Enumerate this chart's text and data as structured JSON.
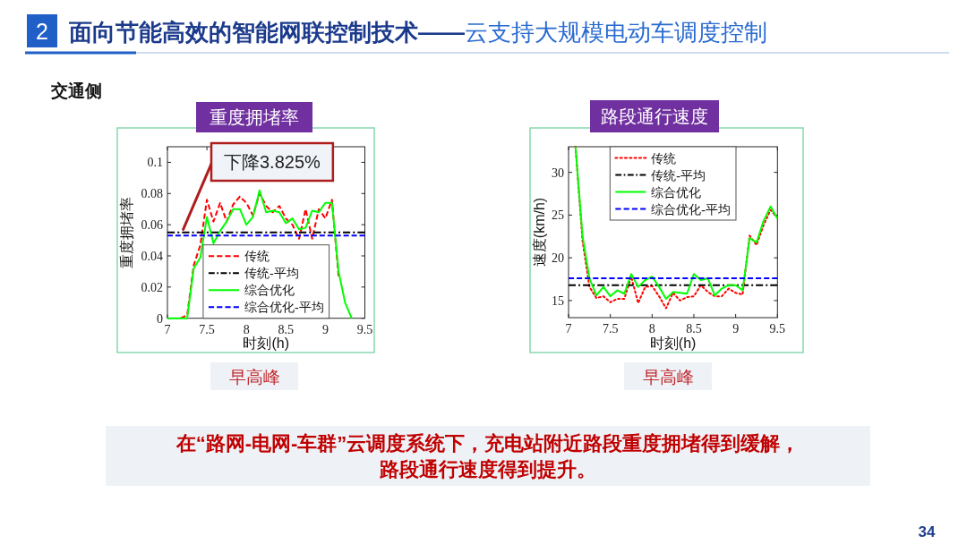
{
  "chart_data": [
    {
      "type": "other",
      "title": "面向节能高效的智能网联控制技术——",
      "subtitle": "云支持大规模电动车调度控制",
      "annotations": [
        "2",
        "交通侧"
      ]
    },
    {
      "type": "line",
      "title": "重度拥堵率",
      "xlabel": "时刻(h)",
      "ylabel": "重度拥堵率",
      "x": [
        7,
        7.083,
        7.167,
        7.25,
        7.333,
        7.417,
        7.5,
        7.583,
        7.667,
        7.75,
        7.833,
        7.917,
        8,
        8.083,
        8.167,
        8.25,
        8.333,
        8.417,
        8.5,
        8.583,
        8.667,
        8.75,
        8.833,
        8.917,
        9,
        9.083,
        9.167,
        9.25,
        9.333,
        9.417,
        9.5
      ],
      "series": [
        {
          "name": "传统",
          "color": "#ff0000",
          "line_style": "dashed",
          "values": [
            null,
            null,
            0,
            0.002,
            0.034,
            0.047,
            0.076,
            0.062,
            0.074,
            0.062,
            0.073,
            0.078,
            0.074,
            0.066,
            0.08,
            0.072,
            0.068,
            0.072,
            0.064,
            0.06,
            0.051,
            0.07,
            0.051,
            0.07,
            0.064,
            0.076,
            0.027,
            null,
            null,
            null,
            null
          ]
        },
        {
          "name": "传统-平均",
          "color": "#000000",
          "line_style": "dashdot",
          "values": [
            0.055,
            0.055,
            0.055,
            0.055,
            0.055,
            0.055,
            0.055,
            0.055,
            0.055,
            0.055,
            0.055,
            0.055,
            0.055,
            0.055,
            0.055,
            0.055,
            0.055,
            0.055,
            0.055,
            0.055,
            0.055,
            0.055,
            0.055,
            0.055,
            0.055,
            0.055,
            0.055,
            0.055,
            0.055,
            0.055,
            0.055
          ]
        },
        {
          "name": "综合优化",
          "color": "#00ff00",
          "line_style": "solid",
          "values": [
            0,
            0,
            0,
            0,
            0.032,
            0.039,
            0.065,
            0.048,
            0.056,
            0.062,
            0.07,
            0.07,
            0.06,
            0.065,
            0.082,
            0.068,
            0.069,
            0.068,
            0.061,
            0.064,
            0.057,
            0.058,
            0.069,
            0.068,
            0.074,
            0.074,
            0.03,
            0.01,
            0,
            null,
            null
          ]
        },
        {
          "name": "综合优化-平均",
          "color": "#0000ff",
          "line_style": "dashed",
          "values": [
            0.053,
            0.053,
            0.053,
            0.053,
            0.053,
            0.053,
            0.053,
            0.053,
            0.053,
            0.053,
            0.053,
            0.053,
            0.053,
            0.053,
            0.053,
            0.053,
            0.053,
            0.053,
            0.053,
            0.053,
            0.053,
            0.053,
            0.053,
            0.053,
            0.053,
            0.053,
            0.053,
            0.053,
            0.053,
            0.053,
            0.053
          ]
        }
      ],
      "xlim": [
        7,
        9.5
      ],
      "xticks": [
        7,
        7.5,
        8,
        8.5,
        9,
        9.5
      ],
      "ylim": [
        0,
        0.11
      ],
      "yticks": [
        0,
        0.02,
        0.04,
        0.06,
        0.08,
        0.1
      ],
      "legend": "bottom",
      "annotations": [
        {
          "text": "下降3.825%",
          "x": 7.2,
          "y": 0.057
        },
        "早高峰"
      ]
    },
    {
      "type": "line",
      "title": "路段通行速度",
      "xlabel": "时刻(h)",
      "ylabel": "速度(km/h)",
      "x": [
        7,
        7.083,
        7.167,
        7.25,
        7.333,
        7.417,
        7.5,
        7.583,
        7.667,
        7.75,
        7.833,
        7.917,
        8,
        8.083,
        8.167,
        8.25,
        8.333,
        8.417,
        8.5,
        8.583,
        8.667,
        8.75,
        8.833,
        8.917,
        9,
        9.083,
        9.167,
        9.25,
        9.333,
        9.417,
        9.5
      ],
      "series": [
        {
          "name": "传统",
          "color": "#ff0000",
          "line_style": "dotted",
          "values": [
            null,
            33,
            22.0,
            16.6,
            15.3,
            15.5,
            14.8,
            15.2,
            15.2,
            17.8,
            14.7,
            16.6,
            16.7,
            15.5,
            14.1,
            15.9,
            15.0,
            15.4,
            15.5,
            16.8,
            16.0,
            15.5,
            15.5,
            16.4,
            15.9,
            15.7,
            22.6,
            21.5,
            23.8,
            25.6,
            24.7
          ]
        },
        {
          "name": "传统-平均",
          "color": "#000000",
          "line_style": "dashdot",
          "values": [
            16.8,
            16.8,
            16.8,
            16.8,
            16.8,
            16.8,
            16.8,
            16.8,
            16.8,
            16.8,
            16.8,
            16.8,
            16.8,
            16.8,
            16.8,
            16.8,
            16.8,
            16.8,
            16.8,
            16.8,
            16.8,
            16.8,
            16.8,
            16.8,
            16.8,
            16.8,
            16.8,
            16.8,
            16.8,
            16.8,
            16.8
          ]
        },
        {
          "name": "综合优化",
          "color": "#00ff00",
          "line_style": "solid",
          "values": [
            null,
            33,
            22.6,
            17.6,
            15.6,
            16.6,
            15.5,
            16.2,
            15.8,
            18.1,
            16.6,
            17.4,
            17.8,
            16.6,
            15.2,
            16.0,
            15.9,
            15.8,
            18.1,
            17.4,
            17.6,
            15.6,
            16.4,
            16.8,
            16.8,
            16.2,
            22.3,
            21.8,
            24.3,
            26.0,
            24.6
          ]
        },
        {
          "name": "综合优化-平均",
          "color": "#0000ff",
          "line_style": "dashed",
          "values": [
            17.6,
            17.6,
            17.6,
            17.6,
            17.6,
            17.6,
            17.6,
            17.6,
            17.6,
            17.6,
            17.6,
            17.6,
            17.6,
            17.6,
            17.6,
            17.6,
            17.6,
            17.6,
            17.6,
            17.6,
            17.6,
            17.6,
            17.6,
            17.6,
            17.6,
            17.6,
            17.6,
            17.6,
            17.6,
            17.6,
            17.6
          ]
        }
      ],
      "xlim": [
        7,
        9.5
      ],
      "xticks": [
        7,
        7.5,
        8,
        8.5,
        9,
        9.5
      ],
      "ylim": [
        13,
        33
      ],
      "yticks": [
        15,
        20,
        25,
        30
      ],
      "legend": "top",
      "annotations": [
        "早高峰"
      ]
    },
    {
      "type": "other",
      "annotations": [
        "在“路网-电网-车群”云调度系统下，充电站附近路段重度拥堵得到缓解，路段通行速度得到提升。",
        "34"
      ]
    }
  ]
}
